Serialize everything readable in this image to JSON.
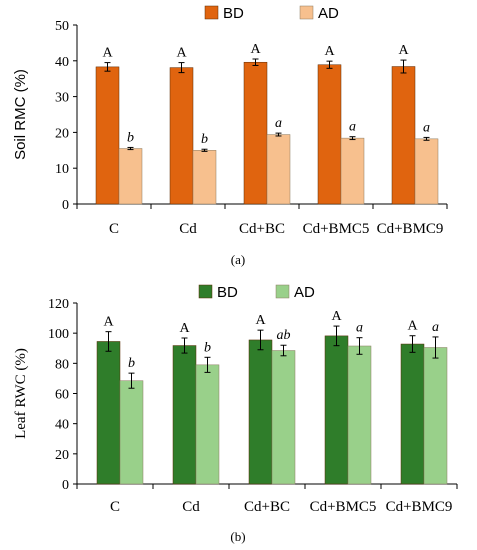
{
  "chart_data": [
    {
      "type": "bar",
      "panel_label": "(a)",
      "ylabel": "Soil RMC (%)",
      "ylim": [
        0,
        50
      ],
      "yticks": [
        0,
        10,
        20,
        30,
        40,
        50
      ],
      "grid": false,
      "legend_position": "top",
      "categories": [
        "C",
        "Cd",
        "Cd+BC",
        "Cd+BMC5",
        "Cd+BMC9"
      ],
      "series": [
        {
          "name": "BD",
          "color": "#e0640f",
          "values": [
            38.3,
            38.1,
            39.6,
            38.9,
            38.4
          ],
          "errors": [
            1.2,
            1.4,
            0.9,
            1.0,
            1.8
          ],
          "labels": [
            "A",
            "A",
            "A",
            "A",
            "A"
          ]
        },
        {
          "name": "AD",
          "color": "#f7c08e",
          "values": [
            15.5,
            15.0,
            19.4,
            18.4,
            18.2
          ],
          "errors": [
            0.3,
            0.3,
            0.4,
            0.4,
            0.4
          ],
          "labels": [
            "b",
            "b",
            "a",
            "a",
            "a"
          ]
        }
      ]
    },
    {
      "type": "bar",
      "panel_label": "(b)",
      "ylabel": "Leaf RWC (%)",
      "ylim": [
        0,
        120
      ],
      "yticks": [
        0,
        20,
        40,
        60,
        80,
        100,
        120
      ],
      "grid": false,
      "legend_position": "top",
      "categories": [
        "C",
        "Cd",
        "Cd+BC",
        "Cd+BMC5",
        "Cd+BMC9"
      ],
      "series": [
        {
          "name": "BD",
          "color": "#2f7d2a",
          "values": [
            94.5,
            91.8,
            95.5,
            98.2,
            92.8
          ],
          "errors": [
            6.5,
            5.0,
            6.5,
            6.5,
            5.5
          ],
          "labels": [
            "A",
            "A",
            "A",
            "A",
            "A"
          ]
        },
        {
          "name": "AD",
          "color": "#99d08a",
          "values": [
            68.5,
            79.0,
            88.5,
            91.5,
            90.5
          ],
          "errors": [
            5.0,
            5.0,
            3.5,
            5.5,
            7.0
          ],
          "labels": [
            "b",
            "b",
            "ab",
            "a",
            "a"
          ]
        }
      ]
    }
  ]
}
